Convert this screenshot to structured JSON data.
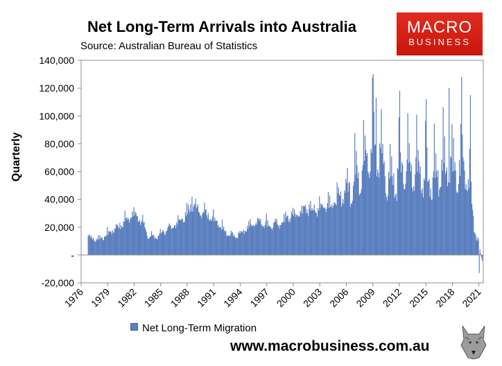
{
  "header": {
    "title": "Net Long-Term Arrivals into Australia",
    "source": "Source: Australian Bureau of Statistics"
  },
  "logo": {
    "line1": "MACRO",
    "line2": "BUSINESS"
  },
  "footer": {
    "url": "www.macrobusiness.com.au"
  },
  "colors": {
    "bar": "#5b7fbf",
    "bar_edge": "#46649c",
    "logo_red": "#d9231a"
  },
  "chart_data": {
    "type": "bar",
    "title": "Net Long-Term Arrivals into Australia",
    "ylabel": "Quarterly",
    "xlabel": "",
    "ylim": [
      -20000,
      140000
    ],
    "yticks": [
      {
        "value": 140000,
        "label": "140,000"
      },
      {
        "value": 120000,
        "label": "120,000"
      },
      {
        "value": 100000,
        "label": "100,000"
      },
      {
        "value": 80000,
        "label": "80,000"
      },
      {
        "value": 60000,
        "label": "60,000"
      },
      {
        "value": 40000,
        "label": "40,000"
      },
      {
        "value": 20000,
        "label": "20,000"
      },
      {
        "value": 0,
        "label": "-"
      },
      {
        "value": -20000,
        "label": "-20,000"
      }
    ],
    "xlim": [
      1976.0,
      2021.5
    ],
    "xticks": [
      "1976",
      "1979",
      "1982",
      "1985",
      "1988",
      "1991",
      "1994",
      "1997",
      "2000",
      "2003",
      "2006",
      "2009",
      "2012",
      "2015",
      "2018",
      "2021"
    ],
    "legend": "Net Long-Term Migration",
    "frequency": "monthly",
    "series": [
      {
        "name": "Net Long-Term Migration",
        "start": 1976.75,
        "step_years": 0.08333,
        "annual_values": [
          [
            1976,
            15000
          ],
          [
            1977,
            11000
          ],
          [
            1978,
            13000
          ],
          [
            1979,
            18000
          ],
          [
            1980,
            22000
          ],
          [
            1981,
            29000
          ],
          [
            1982,
            28000
          ],
          [
            1983,
            14000
          ],
          [
            1984,
            13000
          ],
          [
            1985,
            18000
          ],
          [
            1986,
            22000
          ],
          [
            1987,
            28000
          ],
          [
            1988,
            36000
          ],
          [
            1989,
            33000
          ],
          [
            1990,
            27000
          ],
          [
            1991,
            22000
          ],
          [
            1992,
            15000
          ],
          [
            1993,
            14000
          ],
          [
            1994,
            18000
          ],
          [
            1995,
            24000
          ],
          [
            1996,
            24000
          ],
          [
            1997,
            21000
          ],
          [
            1998,
            23000
          ],
          [
            1999,
            28000
          ],
          [
            2000,
            30000
          ],
          [
            2001,
            34000
          ],
          [
            2002,
            33000
          ],
          [
            2003,
            37000
          ],
          [
            2004,
            38000
          ],
          [
            2005,
            43000
          ],
          [
            2006,
            52000
          ],
          [
            2007,
            63000
          ],
          [
            2008,
            75000
          ],
          [
            2009,
            82000
          ],
          [
            2010,
            58000
          ],
          [
            2011,
            55000
          ],
          [
            2012,
            64000
          ],
          [
            2013,
            66000
          ],
          [
            2014,
            60000
          ],
          [
            2015,
            58000
          ],
          [
            2016,
            62000
          ],
          [
            2017,
            66000
          ],
          [
            2018,
            62000
          ],
          [
            2019,
            65000
          ],
          [
            2020,
            20000
          ],
          [
            2021,
            -9000
          ]
        ],
        "peaks": [
          [
            1988.5,
            42000
          ],
          [
            2009.0,
            130000
          ],
          [
            2009.3,
            113000
          ],
          [
            2012.0,
            118000
          ],
          [
            2015.0,
            112000
          ],
          [
            2017.6,
            120000
          ],
          [
            2019.0,
            128000
          ],
          [
            2020.0,
            115000
          ],
          [
            2021.0,
            -13000
          ]
        ]
      }
    ]
  }
}
